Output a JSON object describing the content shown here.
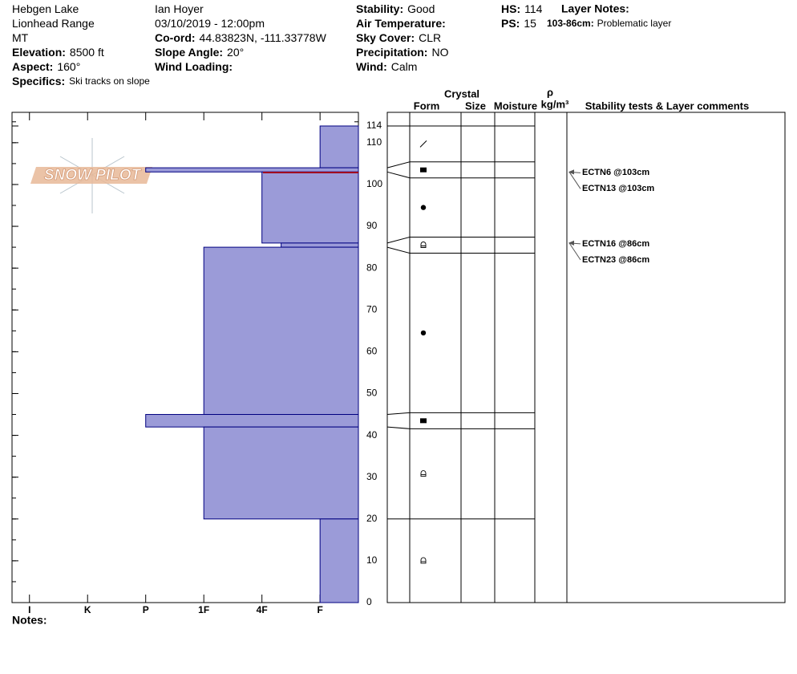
{
  "header": {
    "columns": [
      [
        {
          "value": "Hebgen Lake"
        },
        {
          "value": "Lionhead Range"
        },
        {
          "value": "MT"
        },
        {
          "label": "Elevation:",
          "value": "8500 ft"
        },
        {
          "label": "Aspect:",
          "value": "160°"
        },
        {
          "label": "Specifics:",
          "value": "Ski tracks on slope"
        }
      ],
      [
        {
          "value": "Ian Hoyer"
        },
        {
          "value": "03/10/2019 - 12:00pm"
        },
        {
          "label": "Co-ord:",
          "value": "44.83823N, -111.33778W"
        },
        {
          "label": "Slope Angle:",
          "value": "20°"
        },
        {
          "label": "Wind Loading:"
        }
      ],
      [
        {
          "label": "Stability:",
          "value": "Good"
        },
        {
          "label": "Air Temperature:"
        },
        {
          "label": "Sky Cover:",
          "value": "CLR"
        },
        {
          "label": "Precipitation:",
          "value": "NO"
        },
        {
          "label": "Wind:",
          "value": "Calm"
        }
      ],
      [
        {
          "label": "HS:",
          "value": "114"
        },
        {
          "label": "PS:",
          "value": "15"
        }
      ]
    ],
    "layer_notes": {
      "title": "Layer Notes:",
      "range": "103-86cm:",
      "text": "Problematic layer"
    }
  },
  "logo": "SNOW PILOT",
  "notes_label": "Notes:",
  "columns": {
    "crystal": "Crystal",
    "form": "Form",
    "size": "Size",
    "moisture": "Moisture",
    "density_symbol": "ρ",
    "density_unit": "kg/m³",
    "comments": "Stability tests & Layer comments"
  },
  "chart_data": {
    "type": "bar",
    "orientation": "horizontal",
    "xlim": [
      6.3,
      0.34
    ],
    "xticks": [
      {
        "value": 6,
        "label": "I"
      },
      {
        "value": 5,
        "label": "K"
      },
      {
        "value": 4,
        "label": "P"
      },
      {
        "value": 3,
        "label": "1F"
      },
      {
        "value": 2,
        "label": "4F"
      },
      {
        "value": 1,
        "label": "F"
      }
    ],
    "ylim": [
      0,
      114
    ],
    "yticks": [
      0,
      10,
      20,
      30,
      40,
      50,
      60,
      70,
      80,
      90,
      100,
      110,
      114
    ],
    "color": "#9b9bd8",
    "edge_color": "#000080",
    "layers": [
      {
        "top": 114,
        "bottom": 104,
        "hardness": 1
      },
      {
        "top": 104,
        "bottom": 103,
        "hardness": 4
      },
      {
        "top": 103,
        "bottom": 86,
        "hardness": 2
      },
      {
        "top": 86,
        "bottom": 85,
        "hardness": 1.67
      },
      {
        "top": 85,
        "bottom": 45,
        "hardness": 3
      },
      {
        "top": 45,
        "bottom": 42,
        "hardness": 4
      },
      {
        "top": 42,
        "bottom": 20,
        "hardness": 3
      },
      {
        "top": 20,
        "bottom": 0,
        "hardness": 1
      }
    ],
    "tests": [
      {
        "label": "ECTN6 @103cm",
        "depth": 103
      },
      {
        "label": "ECTN13 @103cm",
        "depth": 103
      },
      {
        "label": "ECTN16 @86cm",
        "depth": 86
      },
      {
        "label": "ECTN23 @86cm",
        "depth": 86
      }
    ]
  }
}
